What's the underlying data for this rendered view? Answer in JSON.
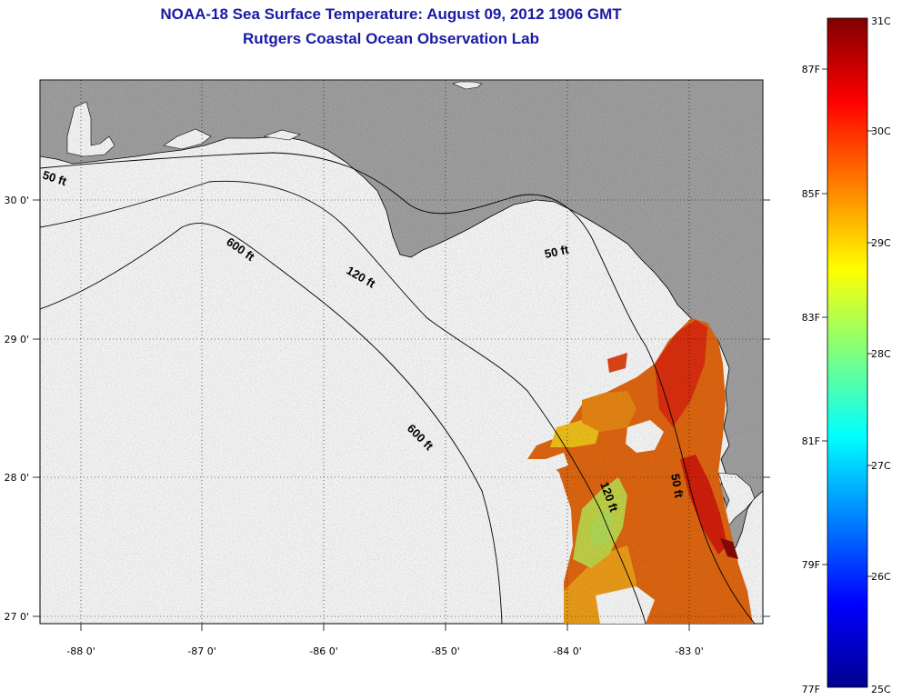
{
  "title": "NOAA-18 Sea Surface Temperature:  August 09, 2012 1906 GMT",
  "subtitle": "Rutgers Coastal Ocean Observation Lab",
  "colors": {
    "land": "#a6a6a6",
    "title": "#1a1aa6",
    "ocean": "#ffffff"
  },
  "axes": {
    "lon_ticks": [
      "-88 0'",
      "-87 0'",
      "-86 0'",
      "-85 0'",
      "-84 0'",
      "-83 0'"
    ],
    "lat_ticks": [
      "30 0'",
      "29 0'",
      "28 0'",
      "27 0'"
    ]
  },
  "contours": [
    "50 ft",
    "120 ft",
    "600 ft",
    "600 ft",
    "50 ft",
    "120 ft",
    "50 ft"
  ],
  "colorbar": {
    "celsius": [
      "31C",
      "30C",
      "29C",
      "28C",
      "27C",
      "26C",
      "25C"
    ],
    "fahrenheit": [
      "87F",
      "85F",
      "83F",
      "81F",
      "79F",
      "77F"
    ]
  }
}
